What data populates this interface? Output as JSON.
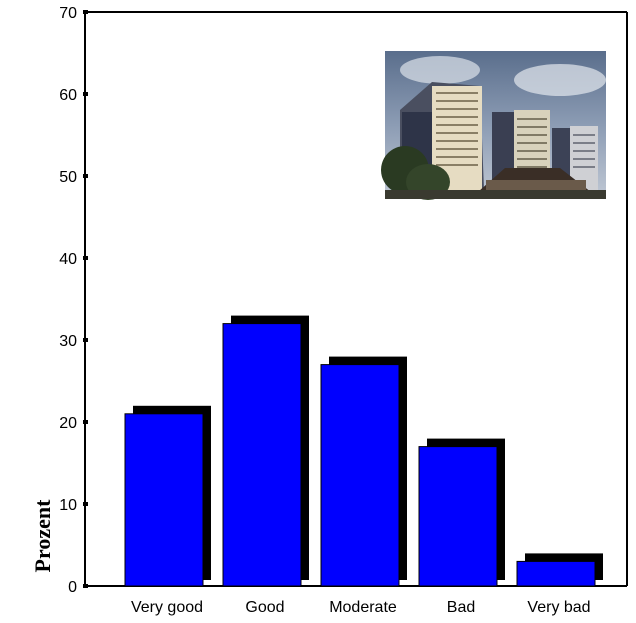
{
  "chart_data": {
    "type": "bar",
    "categories": [
      "Very good",
      "Good",
      "Moderate",
      "Bad",
      "Very bad"
    ],
    "values": [
      21,
      32,
      27,
      17,
      3
    ],
    "ylabel": "Prozent",
    "xlabel": "",
    "ylim": [
      0,
      70
    ],
    "yticks": [
      "0",
      "10",
      "20",
      "30",
      "40",
      "50",
      "60",
      "70"
    ],
    "bar_color": "#0000ff",
    "shadow_color": "#000000",
    "grid": false,
    "photo": "apartment-buildings-photo"
  }
}
